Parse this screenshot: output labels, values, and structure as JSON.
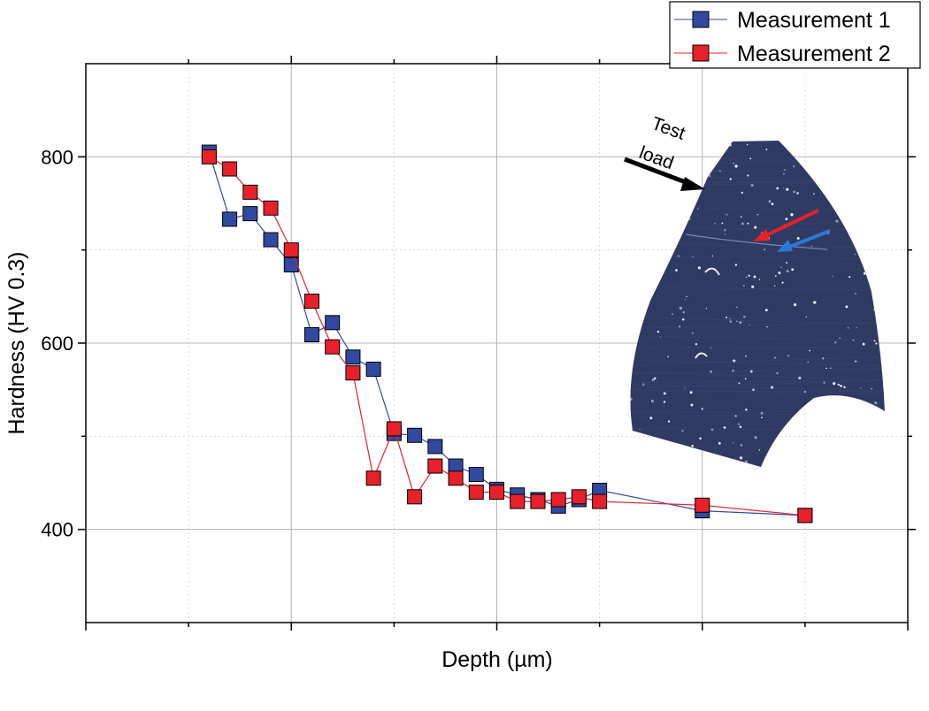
{
  "chart_data": {
    "type": "line",
    "xlabel": "Depth (µm)",
    "ylabel": "Hardness (HV 0.3)",
    "xlim": [
      0,
      400
    ],
    "ylim": [
      300,
      900
    ],
    "yticks": [
      400,
      600,
      800
    ],
    "xtick_labels_visible": false,
    "grid": true,
    "legend_position": "top-right",
    "series": [
      {
        "name": "Measurement 1",
        "color": "#3149a0",
        "marker": "square",
        "x": [
          60,
          70,
          80,
          90,
          100,
          110,
          120,
          130,
          140,
          150,
          160,
          170,
          180,
          190,
          200,
          210,
          220,
          230,
          240,
          250,
          300,
          350
        ],
        "y": [
          805,
          733,
          739,
          711,
          684,
          609,
          622,
          585,
          572,
          503,
          501,
          489,
          468,
          459,
          443,
          437,
          432,
          425,
          432,
          442,
          420,
          415
        ]
      },
      {
        "name": "Measurement 2",
        "color": "#e8202a",
        "marker": "square",
        "x": [
          60,
          70,
          80,
          90,
          100,
          110,
          120,
          130,
          140,
          150,
          160,
          170,
          180,
          190,
          200,
          210,
          220,
          230,
          240,
          250,
          300,
          350
        ],
        "y": [
          800,
          787,
          762,
          745,
          700,
          645,
          596,
          568,
          455,
          508,
          435,
          468,
          455,
          440,
          440,
          430,
          430,
          432,
          435,
          430,
          426,
          415
        ]
      }
    ],
    "annotations": [
      {
        "text_lines": [
          "Test",
          "load"
        ],
        "arrow_color": "#000000"
      }
    ]
  }
}
